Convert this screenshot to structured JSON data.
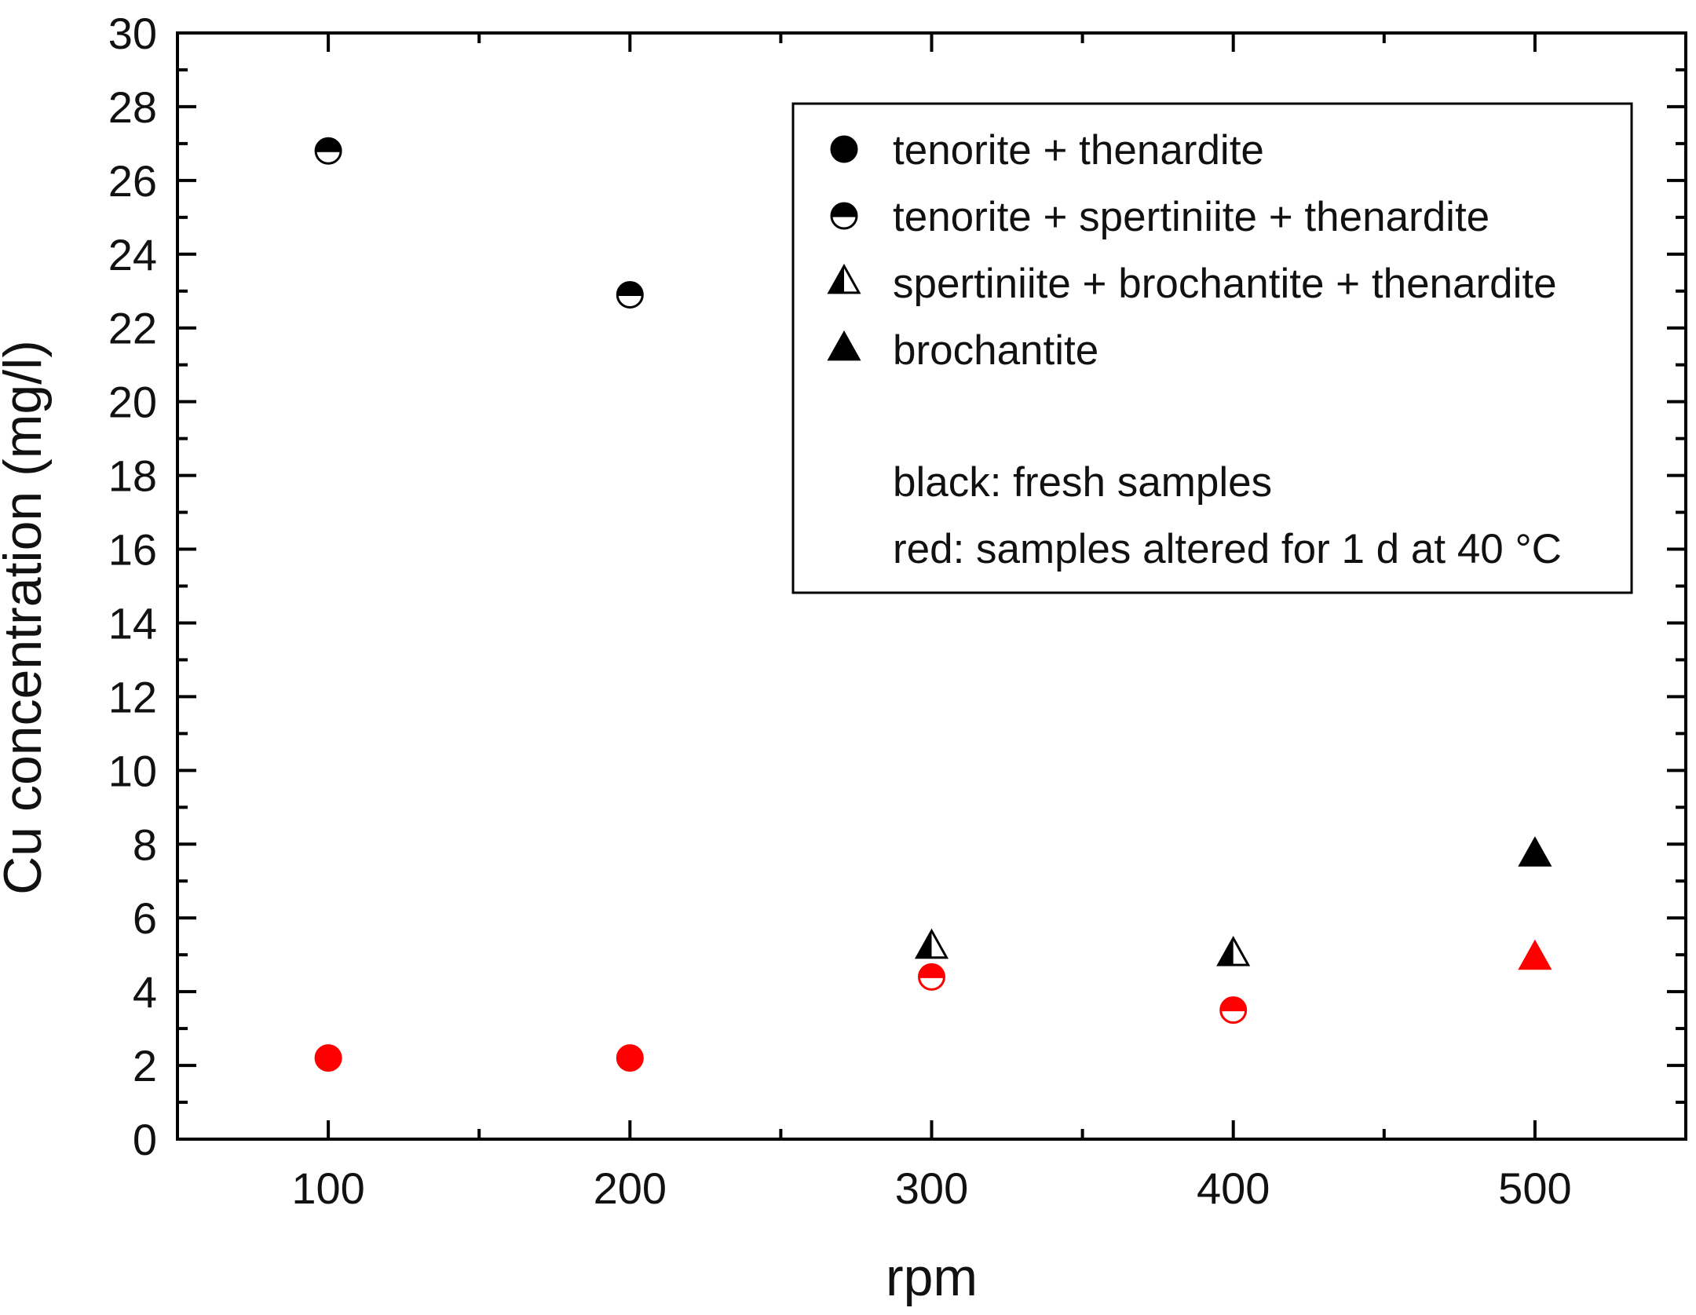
{
  "chart_data": {
    "type": "scatter",
    "xlabel": "rpm",
    "ylabel": "Cu concentration (mg/l)",
    "xlim": [
      50,
      550
    ],
    "ylim": [
      0,
      30
    ],
    "x_ticks": [
      100,
      200,
      300,
      400,
      500
    ],
    "y_ticks": [
      0,
      2,
      4,
      6,
      8,
      10,
      12,
      14,
      16,
      18,
      20,
      22,
      24,
      26,
      28,
      30
    ],
    "grid": false,
    "legend_position": "top-right",
    "legend": [
      {
        "marker": "circle-filled",
        "label": "tenorite + thenardite"
      },
      {
        "marker": "circle-half",
        "label": "tenorite + spertiniite + thenardite"
      },
      {
        "marker": "triangle-half",
        "label": "spertiniite + brochantite + thenardite"
      },
      {
        "marker": "triangle-filled",
        "label": "brochantite"
      }
    ],
    "legend_notes": [
      "black: fresh samples",
      "red: samples altered for 1 d at 40 °C"
    ],
    "colors": {
      "fresh": "#000000",
      "altered": "#ff0000"
    },
    "points": [
      {
        "x": 100,
        "y": 26.8,
        "marker": "circle-half",
        "group": "fresh"
      },
      {
        "x": 200,
        "y": 22.9,
        "marker": "circle-half",
        "group": "fresh"
      },
      {
        "x": 300,
        "y": 5.2,
        "marker": "triangle-half",
        "group": "fresh"
      },
      {
        "x": 400,
        "y": 5.0,
        "marker": "triangle-half",
        "group": "fresh"
      },
      {
        "x": 500,
        "y": 7.7,
        "marker": "triangle-filled",
        "group": "fresh"
      },
      {
        "x": 100,
        "y": 2.2,
        "marker": "circle-filled",
        "group": "altered"
      },
      {
        "x": 200,
        "y": 2.2,
        "marker": "circle-filled",
        "group": "altered"
      },
      {
        "x": 300,
        "y": 4.4,
        "marker": "circle-half",
        "group": "altered"
      },
      {
        "x": 400,
        "y": 3.5,
        "marker": "circle-half",
        "group": "altered"
      },
      {
        "x": 500,
        "y": 4.9,
        "marker": "triangle-filled",
        "group": "altered"
      }
    ]
  }
}
